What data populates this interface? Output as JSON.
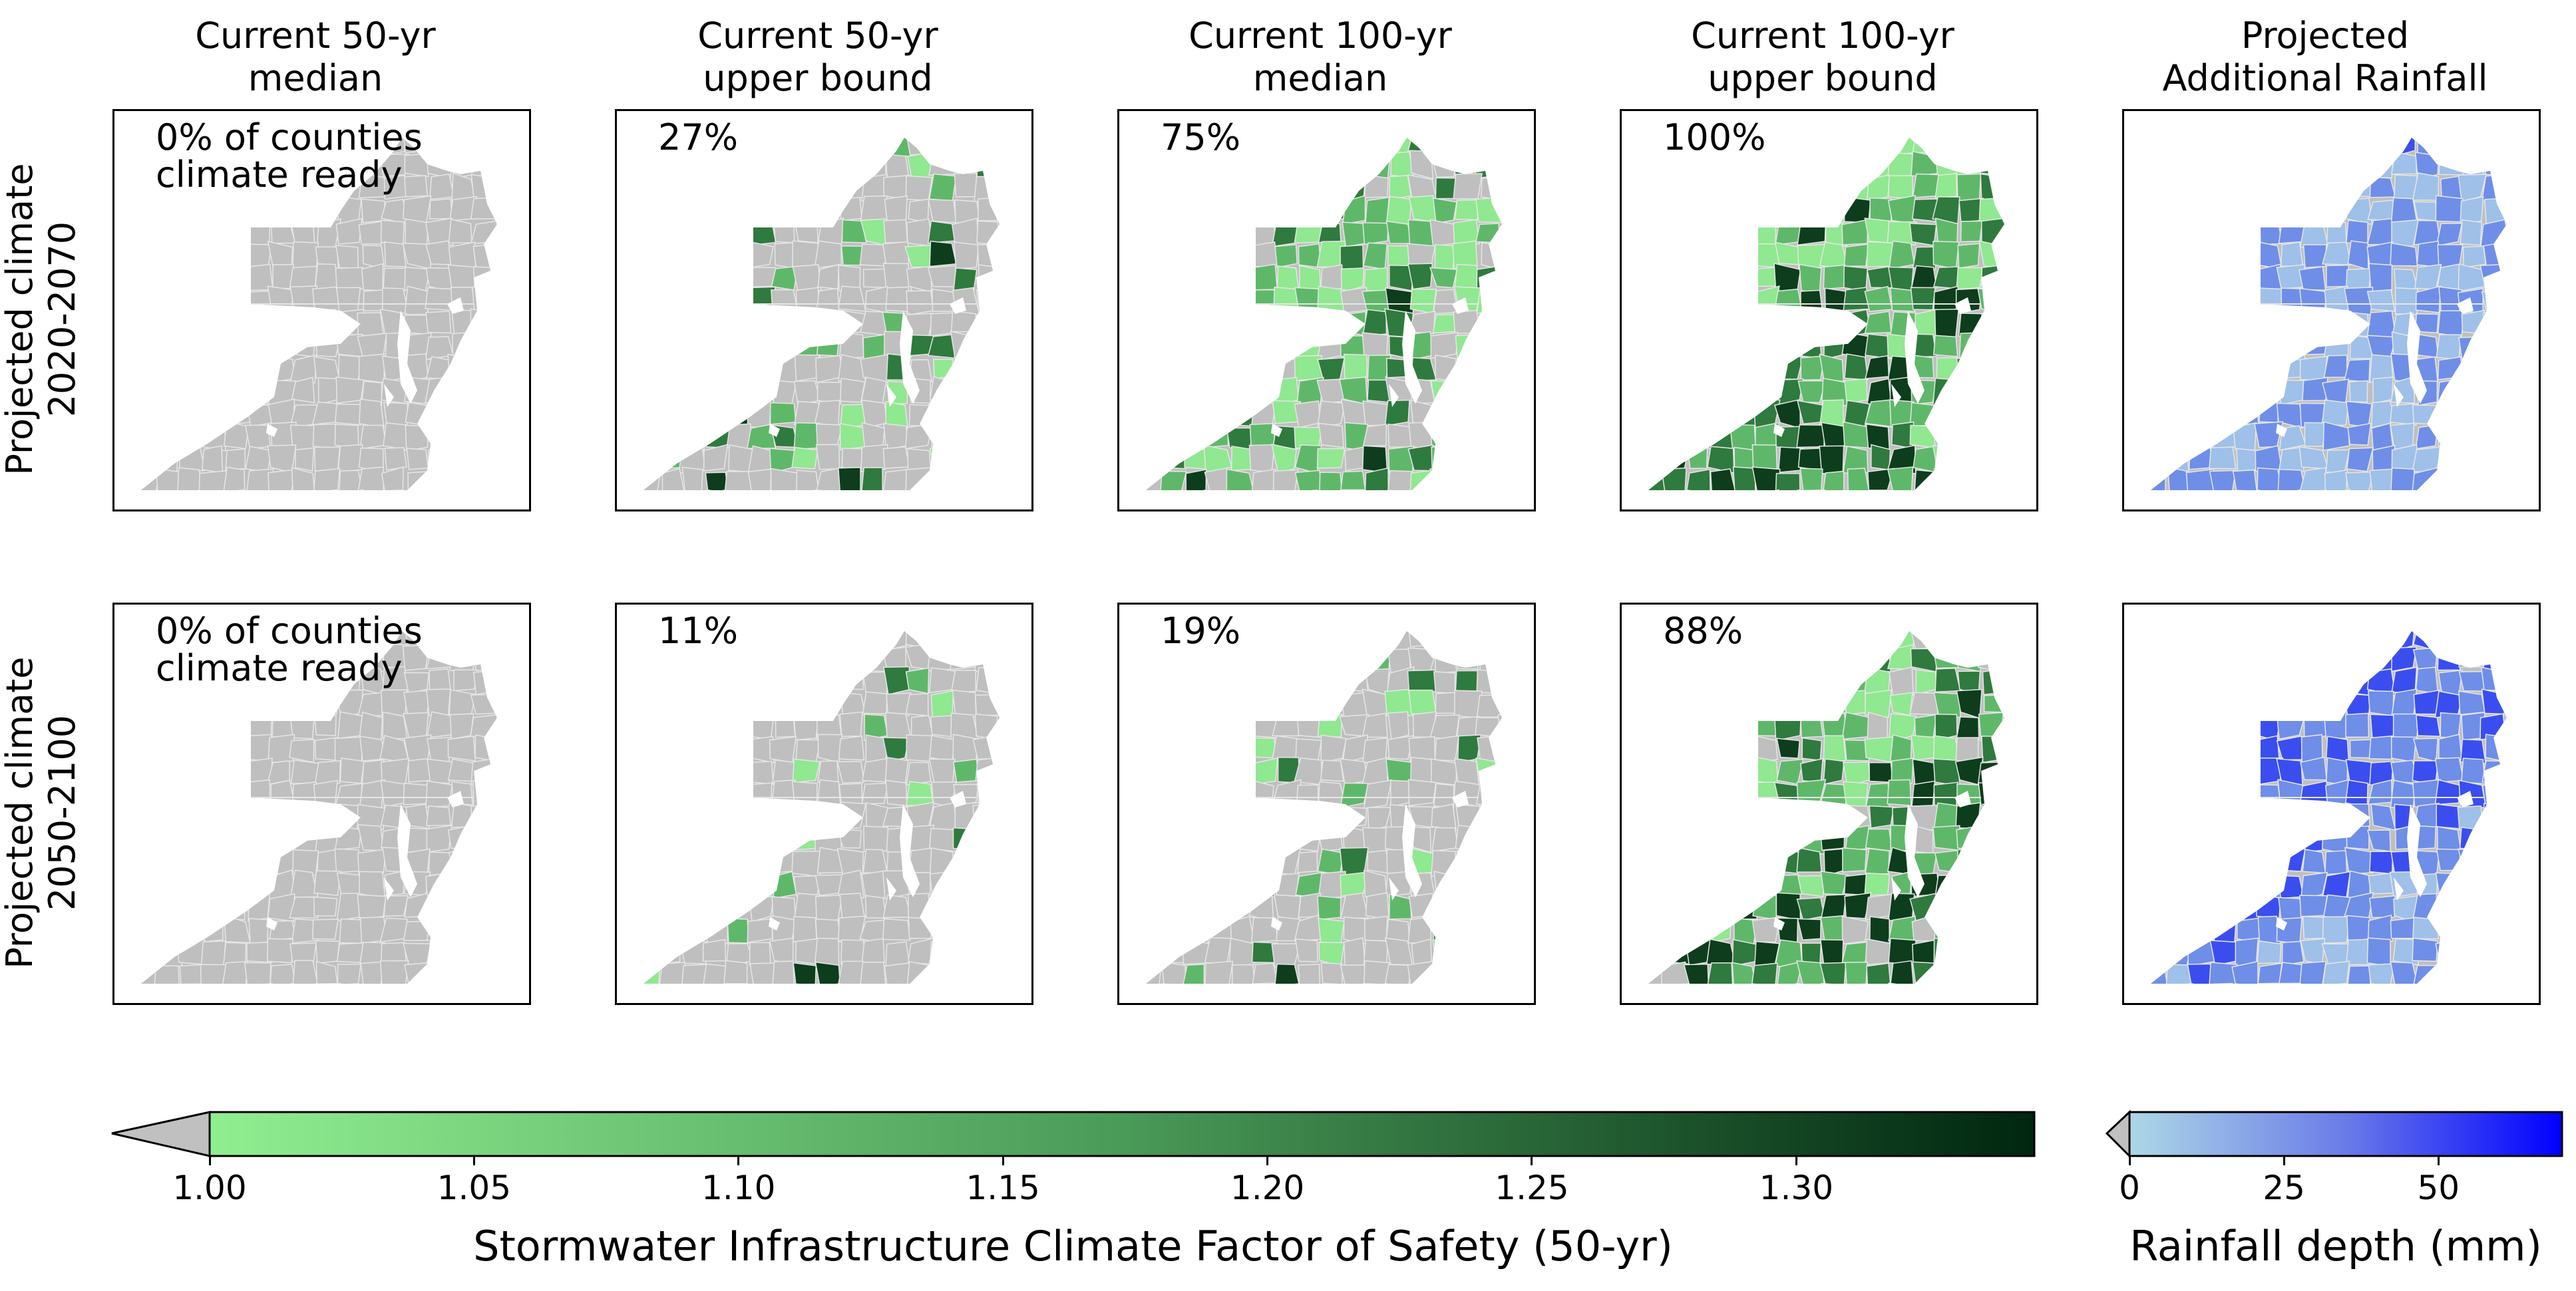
{
  "columns": [
    {
      "line1": "Current 50-yr",
      "line2": "median"
    },
    {
      "line1": "Current 50-yr",
      "line2": "upper bound"
    },
    {
      "line1": "Current 100-yr",
      "line2": "median"
    },
    {
      "line1": "Current 100-yr",
      "line2": "upper bound"
    },
    {
      "line1": "Projected",
      "line2": "Additional Rainfall"
    }
  ],
  "rows": [
    {
      "line1": "Projected climate",
      "line2": "2020-2070",
      "percents": [
        "0% of counties",
        "27%",
        "75%",
        "100%"
      ],
      "first_panel_line2": "climate ready"
    },
    {
      "line1": "Projected climate",
      "line2": "2050-2100",
      "percents": [
        "0% of counties",
        "11%",
        "19%",
        "88%"
      ],
      "first_panel_line2": "climate ready"
    }
  ],
  "colorbars": {
    "safety": {
      "label": "Stormwater Infrastructure Climate Factor of Safety (50-yr)",
      "ticks": [
        "1.00",
        "1.05",
        "1.10",
        "1.15",
        "1.20",
        "1.25",
        "1.30"
      ],
      "min": 1.0,
      "max": 1.345,
      "colors": {
        "under": "#c0c0c0",
        "low": "#90ee90",
        "mid": "#4a9a58",
        "high": "#00260f"
      }
    },
    "rainfall": {
      "label": "Rainfall depth (mm)",
      "ticks": [
        "0",
        "25",
        "50"
      ],
      "min": 0,
      "max": 70,
      "colors": {
        "under": "#c0c0c0",
        "low": "#add8e6",
        "mid": "#6a7be8",
        "high": "#0000ff"
      }
    }
  },
  "map_colors": {
    "not_ready": "#bfbfbf",
    "green_light": "#90e890",
    "green_mid": "#5fb86a",
    "green_dark": "#2f7a3e",
    "green_darkest": "#0d3d1c",
    "blue_light": "#9fc0e8",
    "blue_mid": "#6f8ee8",
    "blue_strong": "#3a4ef0"
  }
}
